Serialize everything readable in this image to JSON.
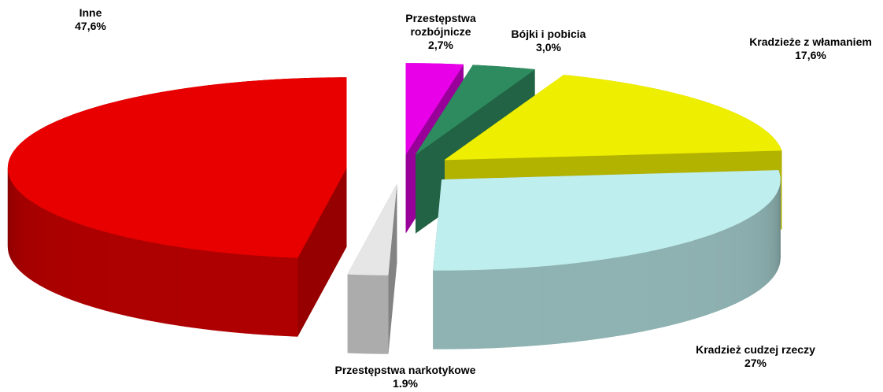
{
  "chart_data": {
    "type": "pie",
    "categories": [
      "Przestępstwa rozbójnicze",
      "Bójki i pobicia",
      "Kradzieże z włamaniem",
      "Kradzież cudzej rzeczy",
      "Przestępstwa narkotykowe",
      "Inne"
    ],
    "values": [
      2.7,
      3.0,
      17.6,
      27,
      1.9,
      47.6
    ],
    "value_labels": [
      "2,7%",
      "3,0%",
      "17,6%",
      "27%",
      "1.9%",
      "47,6%"
    ],
    "colors": [
      "#e800e8",
      "#2e8b5f",
      "#eeee00",
      "#bfeeee",
      "#e6e6e6",
      "#e80000"
    ]
  }
}
